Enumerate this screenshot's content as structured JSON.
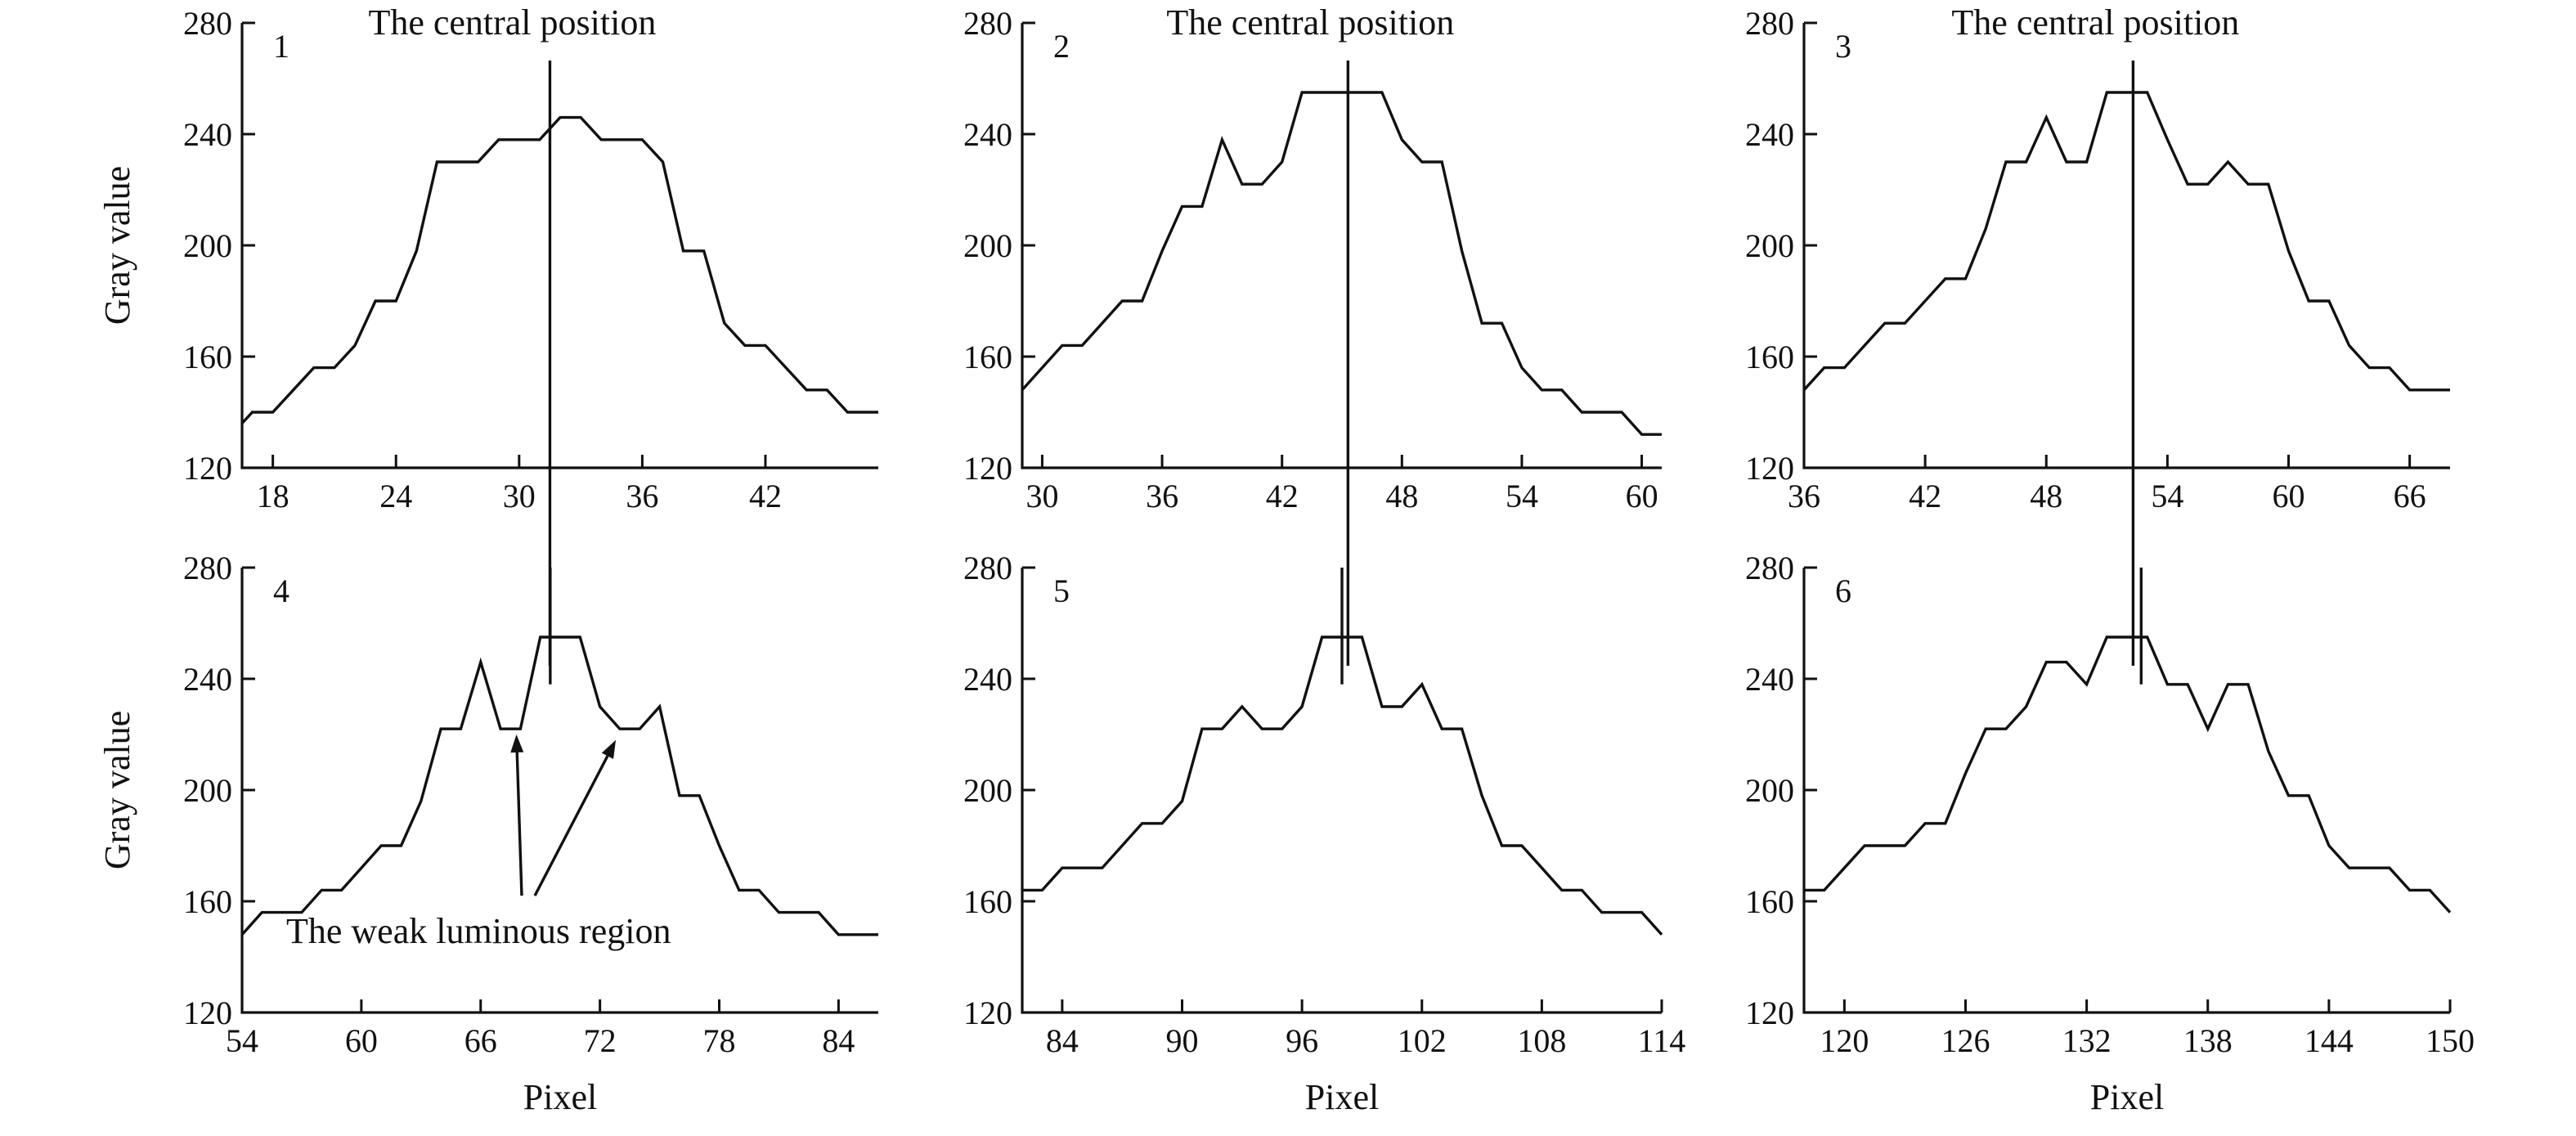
{
  "chart_data": [
    {
      "type": "line",
      "panel_label": "1",
      "annotation": "The central position",
      "center_x": 31.5,
      "xlim": [
        16.5,
        47.5
      ],
      "ylim": [
        120,
        280
      ],
      "xticks": [
        18,
        24,
        30,
        36,
        42
      ],
      "yticks": [
        120,
        160,
        200,
        240,
        280
      ],
      "xlabel": "",
      "ylabel": "Gray value",
      "series": [
        {
          "x": [
            16.5,
            17,
            18,
            19,
            20,
            21,
            22,
            23,
            24,
            25,
            26,
            27,
            28,
            29,
            30,
            31,
            32,
            33,
            34,
            35,
            36,
            37,
            38,
            39,
            40,
            41,
            42,
            43,
            44,
            45,
            46,
            47,
            47.5
          ],
          "y": [
            136,
            140,
            140,
            148,
            156,
            156,
            164,
            180,
            180,
            198,
            230,
            230,
            230,
            238,
            238,
            238,
            246,
            246,
            238,
            238,
            238,
            230,
            198,
            198,
            172,
            164,
            164,
            156,
            148,
            148,
            140,
            140,
            140
          ]
        }
      ]
    },
    {
      "type": "line",
      "panel_label": "2",
      "annotation": "The central position",
      "center_x": 45.3,
      "xlim": [
        29,
        61
      ],
      "ylim": [
        120,
        280
      ],
      "xticks": [
        30,
        36,
        42,
        48,
        54,
        60
      ],
      "yticks": [
        120,
        160,
        200,
        240,
        280
      ],
      "xlabel": "",
      "ylabel": "",
      "series": [
        {
          "x": [
            29,
            30,
            31,
            32,
            33,
            34,
            35,
            36,
            37,
            38,
            39,
            40,
            41,
            42,
            43,
            44,
            45,
            46,
            47,
            48,
            49,
            50,
            51,
            52,
            53,
            54,
            55,
            56,
            57,
            58,
            59,
            60,
            61
          ],
          "y": [
            148,
            156,
            164,
            164,
            172,
            180,
            180,
            198,
            214,
            214,
            238,
            222,
            222,
            230,
            255,
            255,
            255,
            255,
            255,
            238,
            230,
            230,
            198,
            172,
            172,
            156,
            148,
            148,
            140,
            140,
            140,
            132,
            132
          ]
        }
      ]
    },
    {
      "type": "line",
      "panel_label": "3",
      "annotation": "The central position",
      "center_x": 52.3,
      "xlim": [
        36,
        68
      ],
      "ylim": [
        120,
        280
      ],
      "xticks": [
        36,
        42,
        48,
        54,
        60,
        66
      ],
      "yticks": [
        120,
        160,
        200,
        240,
        280
      ],
      "xlabel": "",
      "ylabel": "",
      "series": [
        {
          "x": [
            36,
            37,
            38,
            39,
            40,
            41,
            42,
            43,
            44,
            45,
            46,
            47,
            48,
            49,
            50,
            51,
            52,
            53,
            54,
            55,
            56,
            57,
            58,
            59,
            60,
            61,
            62,
            63,
            64,
            65,
            66,
            67,
            68
          ],
          "y": [
            148,
            156,
            156,
            164,
            172,
            172,
            180,
            188,
            188,
            206,
            230,
            230,
            246,
            230,
            230,
            255,
            255,
            255,
            238,
            222,
            222,
            230,
            222,
            222,
            198,
            180,
            180,
            164,
            156,
            156,
            148,
            148,
            148
          ]
        }
      ]
    },
    {
      "type": "line",
      "panel_label": "4",
      "annotation": "The weak luminous region",
      "center_x": 69.5,
      "arrow_targets": [
        {
          "x": 67.8,
          "y": 220
        },
        {
          "x": 72.8,
          "y": 218
        }
      ],
      "xlim": [
        54,
        86
      ],
      "ylim": [
        120,
        280
      ],
      "xticks": [
        54,
        60,
        66,
        72,
        78,
        84
      ],
      "yticks": [
        120,
        160,
        200,
        240,
        280
      ],
      "xlabel": "Pixel",
      "ylabel": "Gray value",
      "series": [
        {
          "x": [
            54,
            55,
            56,
            57,
            58,
            59,
            60,
            61,
            62,
            63,
            64,
            65,
            66,
            67,
            68,
            69,
            70,
            71,
            72,
            73,
            74,
            75,
            76,
            77,
            78,
            79,
            80,
            81,
            82,
            83,
            84,
            85,
            86
          ],
          "y": [
            148,
            156,
            156,
            156,
            164,
            164,
            172,
            180,
            180,
            196,
            222,
            222,
            246,
            222,
            222,
            255,
            255,
            255,
            230,
            222,
            222,
            230,
            198,
            198,
            180,
            164,
            164,
            156,
            156,
            156,
            148,
            148,
            148
          ]
        }
      ]
    },
    {
      "type": "line",
      "panel_label": "5",
      "annotation": "",
      "center_x": 98,
      "xlim": [
        82,
        114
      ],
      "ylim": [
        120,
        280
      ],
      "xticks": [
        84,
        90,
        96,
        102,
        108,
        114
      ],
      "yticks": [
        120,
        160,
        200,
        240,
        280
      ],
      "xlabel": "Pixel",
      "ylabel": "",
      "series": [
        {
          "x": [
            82,
            83,
            84,
            85,
            86,
            87,
            88,
            89,
            90,
            91,
            92,
            93,
            94,
            95,
            96,
            97,
            98,
            99,
            100,
            101,
            102,
            103,
            104,
            105,
            106,
            107,
            108,
            109,
            110,
            111,
            112,
            113,
            114
          ],
          "y": [
            164,
            164,
            172,
            172,
            172,
            180,
            188,
            188,
            196,
            222,
            222,
            230,
            222,
            222,
            230,
            255,
            255,
            255,
            230,
            230,
            238,
            222,
            222,
            198,
            180,
            180,
            172,
            164,
            164,
            156,
            156,
            156,
            148
          ]
        }
      ]
    },
    {
      "type": "line",
      "panel_label": "6",
      "annotation": "",
      "center_x": 134.7,
      "xlim": [
        118,
        150
      ],
      "ylim": [
        120,
        280
      ],
      "xticks": [
        120,
        126,
        132,
        138,
        144,
        150
      ],
      "yticks": [
        120,
        160,
        200,
        240,
        280
      ],
      "xlabel": "Pixel",
      "ylabel": "",
      "series": [
        {
          "x": [
            118,
            119,
            120,
            121,
            122,
            123,
            124,
            125,
            126,
            127,
            128,
            129,
            130,
            131,
            132,
            133,
            134,
            135,
            136,
            137,
            138,
            139,
            140,
            141,
            142,
            143,
            144,
            145,
            146,
            147,
            148,
            149,
            150
          ],
          "y": [
            164,
            164,
            172,
            180,
            180,
            180,
            188,
            188,
            206,
            222,
            222,
            230,
            246,
            246,
            238,
            255,
            255,
            255,
            238,
            238,
            222,
            238,
            238,
            214,
            198,
            198,
            180,
            172,
            172,
            172,
            164,
            164,
            156
          ]
        }
      ]
    }
  ]
}
